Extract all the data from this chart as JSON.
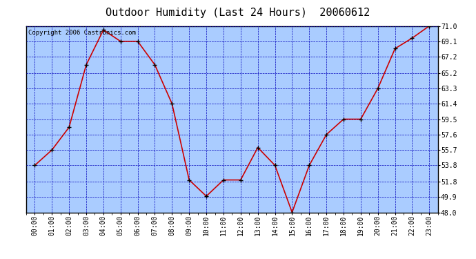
{
  "title": "Outdoor Humidity (Last 24 Hours)  20060612",
  "copyright": "Copyright 2006 Castronics.com",
  "x_labels": [
    "00:00",
    "01:00",
    "02:00",
    "03:00",
    "04:00",
    "05:00",
    "06:00",
    "07:00",
    "08:00",
    "09:00",
    "10:00",
    "11:00",
    "12:00",
    "13:00",
    "14:00",
    "15:00",
    "16:00",
    "17:00",
    "18:00",
    "19:00",
    "20:00",
    "21:00",
    "22:00",
    "23:00"
  ],
  "y_values": [
    53.8,
    55.7,
    58.5,
    66.2,
    70.5,
    69.1,
    69.1,
    66.2,
    61.4,
    52.0,
    50.0,
    52.0,
    52.0,
    56.0,
    53.8,
    48.0,
    53.8,
    57.6,
    59.5,
    59.5,
    63.3,
    68.2,
    69.5,
    71.0
  ],
  "line_color": "#cc0000",
  "marker_color": "#000000",
  "bg_color": "#ffffff",
  "plot_bg_color": "#aaccff",
  "grid_color": "#0000bb",
  "border_color": "#000000",
  "title_color": "#000000",
  "copyright_color": "#000000",
  "ylim": [
    48.0,
    71.0
  ],
  "yticks": [
    48.0,
    49.9,
    51.8,
    53.8,
    55.7,
    57.6,
    59.5,
    61.4,
    63.3,
    65.2,
    67.2,
    69.1,
    71.0
  ],
  "title_fontsize": 11,
  "tick_fontsize": 7,
  "copyright_fontsize": 6.5
}
